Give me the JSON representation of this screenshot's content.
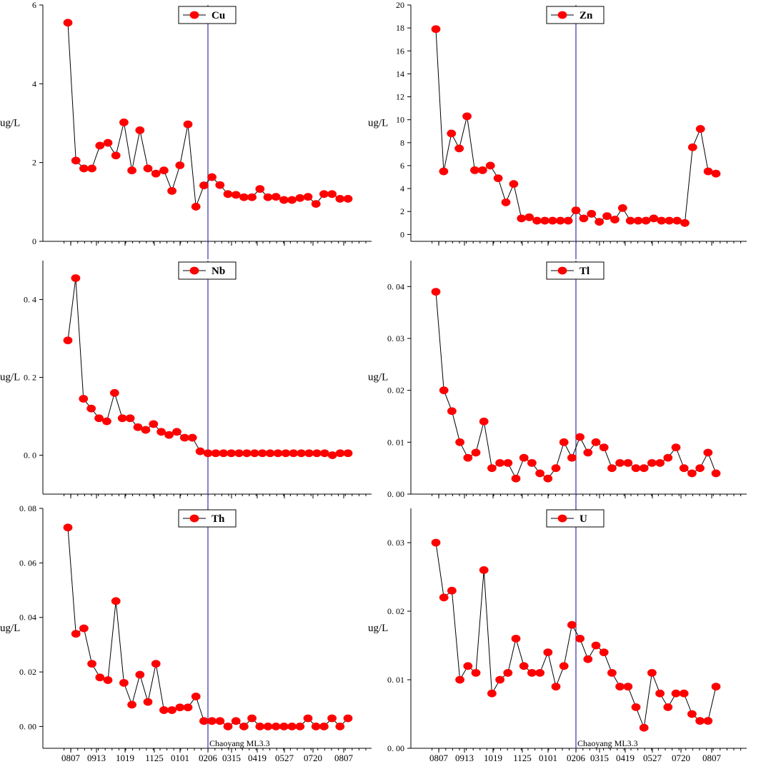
{
  "colors": {
    "marker": "#ff0000",
    "line": "#000000",
    "event_line": "#3333aa"
  },
  "chart_data": [
    {
      "type": "line",
      "element": "Cu",
      "ylabel": "ug/L",
      "ylim": [
        0,
        6
      ],
      "yticks": [
        0,
        2,
        4,
        6
      ],
      "ytick_labels": [
        "0",
        "2",
        "4",
        "6"
      ],
      "legend": "Cu",
      "legend_position": "top-center",
      "values": [
        5.55,
        2.05,
        1.85,
        1.85,
        2.43,
        2.5,
        2.18,
        3.02,
        1.8,
        2.82,
        1.85,
        1.72,
        1.8,
        1.28,
        1.93,
        2.97,
        0.88,
        1.42,
        1.63,
        1.43,
        1.2,
        1.18,
        1.12,
        1.12,
        1.33,
        1.12,
        1.13,
        1.05,
        1.05,
        1.1,
        1.13,
        0.95,
        1.2,
        1.2,
        1.08,
        1.08
      ]
    },
    {
      "type": "line",
      "element": "Zn",
      "ylabel": "ug/L",
      "ylim": [
        -0.6,
        20
      ],
      "yticks": [
        0,
        2,
        4,
        6,
        8,
        10,
        12,
        14,
        16,
        18,
        20
      ],
      "ytick_labels": [
        "0",
        "2",
        "4",
        "6",
        "8",
        "10",
        "12",
        "14",
        "16",
        "18",
        "20"
      ],
      "legend": "Zn",
      "legend_position": "top-center",
      "values": [
        17.9,
        5.5,
        8.8,
        7.5,
        10.3,
        5.6,
        5.6,
        6.0,
        4.9,
        2.8,
        4.4,
        1.4,
        1.5,
        1.2,
        1.2,
        1.2,
        1.2,
        1.2,
        2.1,
        1.4,
        1.8,
        1.1,
        1.6,
        1.3,
        2.3,
        1.2,
        1.2,
        1.2,
        1.4,
        1.2,
        1.2,
        1.2,
        1.0,
        7.6,
        9.2,
        5.5,
        5.3
      ]
    },
    {
      "type": "line",
      "element": "Nb",
      "ylabel": "ug/L",
      "ylim": [
        -0.1,
        0.5
      ],
      "yticks": [
        0,
        0.2,
        0.4
      ],
      "ytick_labels": [
        "0. 0",
        "0. 2",
        "0. 4"
      ],
      "legend": "Nb",
      "legend_position": "top-center",
      "values": [
        0.295,
        0.455,
        0.145,
        0.12,
        0.095,
        0.087,
        0.16,
        0.095,
        0.095,
        0.072,
        0.065,
        0.08,
        0.06,
        0.052,
        0.06,
        0.045,
        0.045,
        0.01,
        0.005,
        0.005,
        0.005,
        0.005,
        0.005,
        0.005,
        0.005,
        0.005,
        0.005,
        0.005,
        0.005,
        0.005,
        0.005,
        0.005,
        0.005,
        0.005,
        0.0,
        0.005,
        0.005
      ]
    },
    {
      "type": "line",
      "element": "Tl",
      "ylabel": "ug/L",
      "ylim": [
        0,
        0.045
      ],
      "yticks": [
        0,
        0.01,
        0.02,
        0.03,
        0.04
      ],
      "ytick_labels": [
        "0. 00",
        "0. 01",
        "0. 02",
        "0. 03",
        "0. 04"
      ],
      "legend": "Tl",
      "legend_position": "top-center",
      "values": [
        0.039,
        0.02,
        0.016,
        0.01,
        0.007,
        0.008,
        0.014,
        0.005,
        0.006,
        0.006,
        0.003,
        0.007,
        0.006,
        0.004,
        0.003,
        0.005,
        0.01,
        0.007,
        0.011,
        0.008,
        0.01,
        0.009,
        0.005,
        0.006,
        0.006,
        0.005,
        0.005,
        0.006,
        0.006,
        0.007,
        0.009,
        0.005,
        0.004,
        0.005,
        0.008,
        0.004
      ]
    },
    {
      "type": "line",
      "element": "Th",
      "ylabel": "ug/L",
      "ylim": [
        -0.008,
        0.08
      ],
      "yticks": [
        0,
        0.02,
        0.04,
        0.06,
        0.08
      ],
      "ytick_labels": [
        "0. 00",
        "0. 02",
        "0. 04",
        "0. 06",
        "0. 08"
      ],
      "legend": "Th",
      "legend_position": "top-center",
      "values": [
        0.073,
        0.034,
        0.036,
        0.023,
        0.018,
        0.017,
        0.046,
        0.016,
        0.008,
        0.019,
        0.009,
        0.023,
        0.006,
        0.006,
        0.007,
        0.007,
        0.011,
        0.002,
        0.002,
        0.002,
        0.0,
        0.002,
        0.0,
        0.003,
        0.0,
        0.0,
        0.0,
        0.0,
        0.0,
        0.0,
        0.003,
        0.0,
        0.0,
        0.003,
        0.0,
        0.003
      ]
    },
    {
      "type": "line",
      "element": "U",
      "ylabel": "ug/L",
      "ylim": [
        0,
        0.035
      ],
      "yticks": [
        0,
        0.01,
        0.02,
        0.03
      ],
      "ytick_labels": [
        "0. 00",
        "0. 01",
        "0. 02",
        "0. 03"
      ],
      "legend": "U",
      "legend_position": "top-center",
      "values": [
        0.03,
        0.022,
        0.023,
        0.01,
        0.012,
        0.011,
        0.026,
        0.008,
        0.01,
        0.011,
        0.016,
        0.012,
        0.011,
        0.011,
        0.014,
        0.009,
        0.012,
        0.018,
        0.016,
        0.013,
        0.015,
        0.014,
        0.011,
        0.009,
        0.009,
        0.006,
        0.003,
        0.011,
        0.008,
        0.006,
        0.008,
        0.008,
        0.005,
        0.004,
        0.004,
        0.009
      ]
    }
  ],
  "x_tick_labels": [
    "0807",
    "0913",
    "1019",
    "1125",
    "0101",
    "0206",
    "0315",
    "0419",
    "0527",
    "0720",
    "0807"
  ],
  "event_label": "Chaoyang ML3.3"
}
